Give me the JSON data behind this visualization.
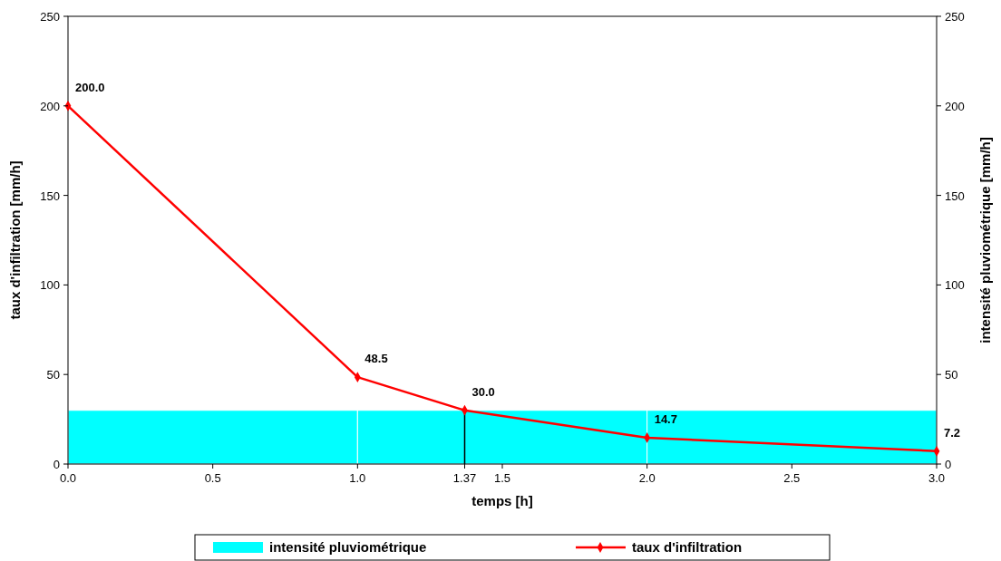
{
  "chart_data": {
    "type": "line",
    "xlabel": "temps [h]",
    "ylabel": "taux d'infiltration [mm/h]",
    "y2label": "intensité pluviométrique [mm/h]",
    "xlim": [
      0,
      3
    ],
    "xticks": [
      {
        "value": 0,
        "label": "0.0"
      },
      {
        "value": 0.5,
        "label": "0.5"
      },
      {
        "value": 1,
        "label": "1.0"
      },
      1.37,
      {
        "value": 1.5,
        "label": "1.5"
      },
      {
        "value": 2,
        "label": "2.0"
      },
      {
        "value": 2.5,
        "label": "2.5"
      },
      {
        "value": 3,
        "label": "3.0"
      }
    ],
    "ylim": [
      0,
      250
    ],
    "yticks": [
      0,
      50,
      100,
      150,
      200,
      250
    ],
    "y2lim": [
      0,
      250
    ],
    "y2ticks": [
      0,
      50,
      100,
      150,
      200,
      250
    ],
    "series": [
      {
        "name": "intensité pluviométrique",
        "type": "bar",
        "axis": "y2",
        "color": "#00ffff",
        "x": [
          0.5,
          1.5,
          2.5
        ],
        "values": [
          30,
          30,
          30
        ]
      },
      {
        "name": "taux d'infiltration",
        "color": "#ff0000",
        "x": [
          0,
          1,
          1.37,
          2,
          3
        ],
        "values": [
          200,
          48.5,
          30,
          14.7,
          7.2
        ],
        "value_labels": [
          "200.0",
          "48.5",
          "30.0",
          "14.7",
          "7.2"
        ]
      }
    ],
    "ref_lines": [
      {
        "axis": "x",
        "value": 1.37,
        "color": "#000000"
      }
    ],
    "marker": "diamond",
    "legend": "bottom",
    "grid": false
  }
}
